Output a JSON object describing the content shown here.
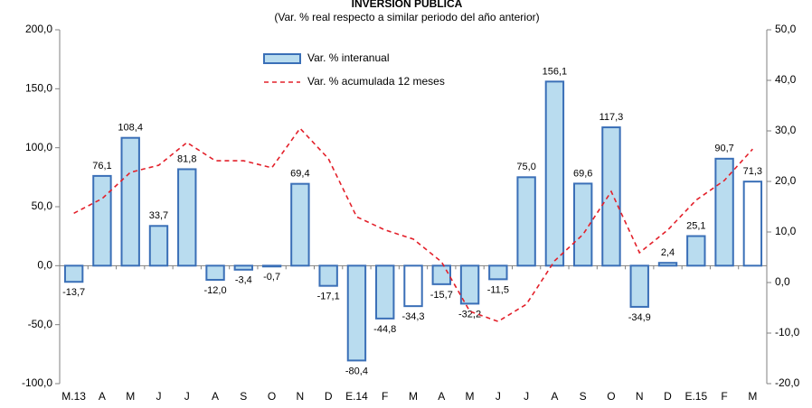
{
  "chart_data": {
    "type": "bar-line",
    "title": "INVERSIÓN PÚBLICA",
    "subtitle": "(Var. % real respecto a similar periodo del año anterior)",
    "categories": [
      "M.13",
      "A",
      "M",
      "J",
      "J",
      "A",
      "S",
      "O",
      "N",
      "D",
      "E.14",
      "F",
      "M",
      "A",
      "M",
      "J",
      "J",
      "A",
      "S",
      "O",
      "N",
      "D",
      "E.15",
      "F",
      "M"
    ],
    "series": [
      {
        "name": "Var. % interanual",
        "type": "bar",
        "color": "#b9dcef",
        "stroke": "#3a6fb7",
        "colors": [
          "#b9dcef",
          "#b9dcef",
          "#b9dcef",
          "#b9dcef",
          "#b9dcef",
          "#b9dcef",
          "#b9dcef",
          "#b9dcef",
          "#b9dcef",
          "#b9dcef",
          "#b9dcef",
          "#b9dcef",
          "#ffffff",
          "#b9dcef",
          "#b9dcef",
          "#b9dcef",
          "#b9dcef",
          "#b9dcef",
          "#b9dcef",
          "#b9dcef",
          "#b9dcef",
          "#b9dcef",
          "#b9dcef",
          "#b9dcef",
          "#ffffff"
        ],
        "values": [
          -13.7,
          76.1,
          108.4,
          33.7,
          81.8,
          -12.0,
          -3.4,
          -0.7,
          69.4,
          -17.1,
          -80.4,
          -44.8,
          -34.3,
          -15.7,
          -32.2,
          -11.5,
          75.0,
          156.1,
          69.6,
          117.3,
          -34.9,
          2.4,
          25.1,
          90.7,
          71.3
        ],
        "value_labels": [
          "-13,7",
          "76,1",
          "108,4",
          "33,7",
          "81,8",
          "-12,0",
          "-3,4",
          "-0,7",
          "69,4",
          "-17,1",
          "-80,4",
          "-44,8",
          "-34,3",
          "-15,7",
          "-32,2",
          "-11,5",
          "75,0",
          "156,1",
          "69,6",
          "117,3",
          "-34,9",
          "2,4",
          "25,1",
          "90,7",
          "71,3"
        ]
      },
      {
        "name": "Var. % acumulada 12 meses",
        "type": "line",
        "color": "#e3202a",
        "axis": "y2",
        "dashed": true,
        "values": [
          13.7,
          16.6,
          21.8,
          23.2,
          27.7,
          24.1,
          24.1,
          22.7,
          30.5,
          24.5,
          13.0,
          10.4,
          8.6,
          4.1,
          -5.7,
          -7.7,
          -4.3,
          4.3,
          9.5,
          18.0,
          5.9,
          10.4,
          16.3,
          20.2,
          26.4
        ]
      }
    ],
    "ylim": [
      -100,
      200
    ],
    "yticks": [
      {
        "value": -100,
        "label": "-100,0"
      },
      {
        "value": -50,
        "label": "-50,0"
      },
      {
        "value": 0,
        "label": "0,0"
      },
      {
        "value": 50,
        "label": "50,0"
      },
      {
        "value": 100,
        "label": "100,0"
      },
      {
        "value": 150,
        "label": "150,0"
      },
      {
        "value": 200,
        "label": "200,0"
      }
    ],
    "y2lim": [
      -20,
      50
    ],
    "y2ticks": [
      {
        "value": -20,
        "label": "-20,0"
      },
      {
        "value": -10,
        "label": "-10,0"
      },
      {
        "value": 0,
        "label": "0,0"
      },
      {
        "value": 10,
        "label": "10,0"
      },
      {
        "value": 20,
        "label": "20,0"
      },
      {
        "value": 30,
        "label": "30,0"
      },
      {
        "value": 40,
        "label": "40,0"
      },
      {
        "value": 50,
        "label": "50,0"
      }
    ],
    "grid": false
  }
}
